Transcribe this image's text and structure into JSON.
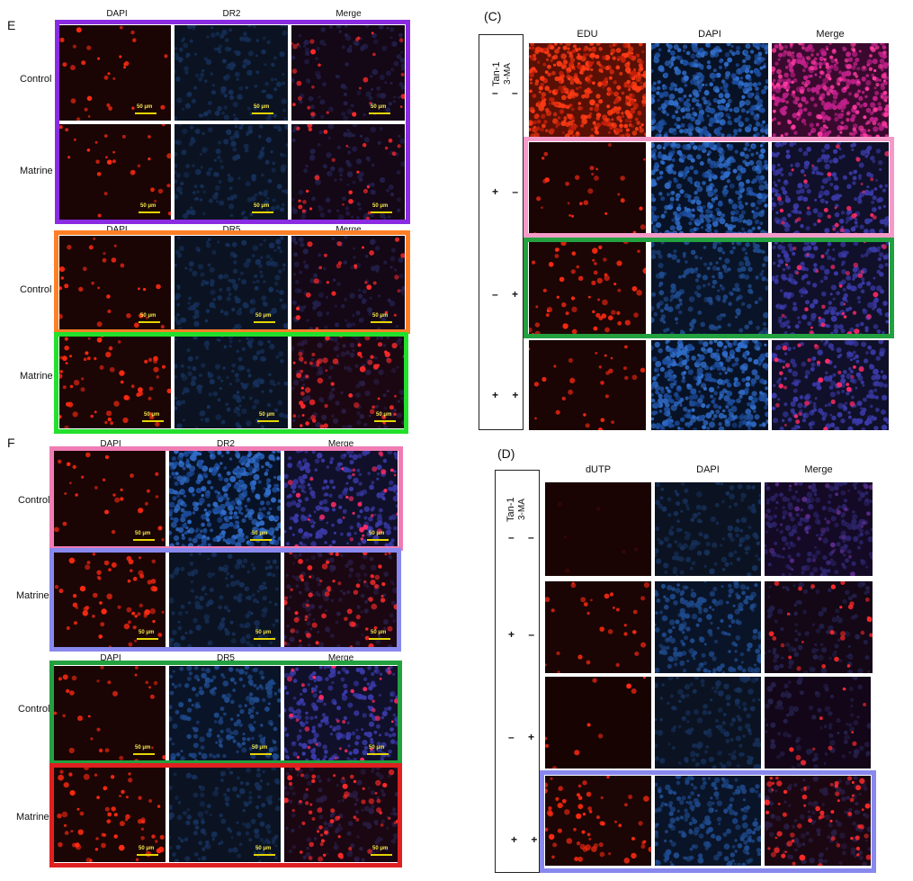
{
  "panels": {
    "E": {
      "label": "E",
      "cols": [
        "DAPI",
        "DR2",
        "Merge",
        "DAPI",
        "DR5",
        "Merge"
      ],
      "rows": [
        "Control",
        "Matrine",
        "Control",
        "Matrine"
      ],
      "scale": "50 μm"
    },
    "F": {
      "label": "F",
      "cols": [
        "DAPI",
        "DR2",
        "Merge",
        "DAPI",
        "DR5",
        "Merge"
      ],
      "rows": [
        "Control",
        "Matrine",
        "Control",
        "Matrine"
      ],
      "scale": "50 μm"
    },
    "C": {
      "label": "(C)",
      "cols": [
        "EDU",
        "DAPI",
        "Merge"
      ],
      "axis": [
        "Tan-1",
        "3-MA"
      ],
      "signs": [
        "– –",
        "+ –",
        "– +",
        "+ +"
      ]
    },
    "D": {
      "label": "(D)",
      "cols": [
        "dUTP",
        "DAPI",
        "Merge"
      ],
      "axis": [
        "Tan-1",
        "3-MA"
      ],
      "signs": [
        "– –",
        "+ –",
        "– +",
        "+ +"
      ]
    }
  },
  "colors": {
    "purple": "#8a2be2",
    "orange": "#ff7f27",
    "green": "#22c02b",
    "pink": "#f07cb4",
    "lavender": "#8888ee",
    "red": "#e02020",
    "darkgreen": "#23a040"
  }
}
